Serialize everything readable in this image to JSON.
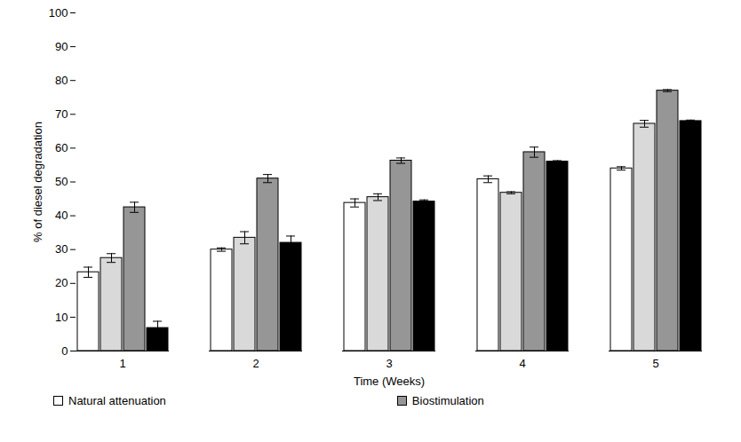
{
  "chart_data": {
    "type": "bar",
    "x_label": "Time (Weeks)",
    "y_label": "% of diesel degradation",
    "categories": [
      "1",
      "2",
      "3",
      "4",
      "5"
    ],
    "series": [
      {
        "name": "Natural attenuation",
        "color": "#ffffff",
        "values": [
          23.3,
          30.0,
          43.8,
          50.8,
          54.0
        ],
        "errors": [
          1.5,
          0.5,
          1.2,
          1.0,
          0.5
        ]
      },
      {
        "name": null,
        "color": "#d9d9d9",
        "values": [
          27.5,
          33.5,
          45.5,
          46.8,
          67.2
        ],
        "errors": [
          1.3,
          1.8,
          1.0,
          0.3,
          1.0
        ]
      },
      {
        "name": "Biostimulation",
        "color": "#969696",
        "values": [
          42.5,
          51.0,
          56.3,
          58.8,
          77.0
        ],
        "errors": [
          1.5,
          1.2,
          0.8,
          1.5,
          0.3
        ]
      },
      {
        "name": null,
        "color": "#000000",
        "values": [
          6.8,
          32.0,
          44.2,
          56.0,
          68.0
        ],
        "errors": [
          2.0,
          2.0,
          0.5,
          0.3,
          0.3
        ]
      }
    ],
    "ylim": [
      0,
      100
    ],
    "yticks": [
      0,
      10,
      20,
      30,
      40,
      50,
      60,
      70,
      80,
      90,
      100
    ],
    "grid": false,
    "legend": "bottom"
  }
}
